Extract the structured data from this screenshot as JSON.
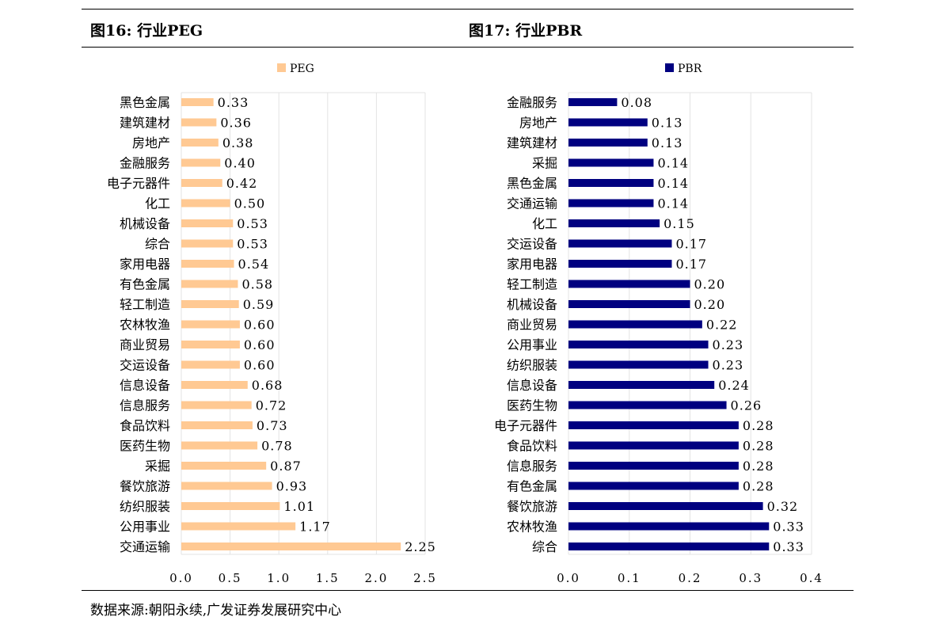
{
  "figures": [
    {
      "heading": "图16:  行业PEG"
    },
    {
      "heading": "图17:  行业PBR"
    }
  ],
  "source": "数据来源:朝阳永续,广发证券发展研究中心",
  "chart_data": [
    {
      "type": "bar",
      "orientation": "horizontal",
      "title": "",
      "color": "#FFC993",
      "categories": [
        "黑色金属",
        "建筑建材",
        "房地产",
        "金融服务",
        "电子元器件",
        "化工",
        "机械设备",
        "综合",
        "家用电器",
        "有色金属",
        "轻工制造",
        "农林牧渔",
        "商业贸易",
        "交运设备",
        "信息设备",
        "信息服务",
        "食品饮料",
        "医药生物",
        "采掘",
        "餐饮旅游",
        "纺织服装",
        "公用事业",
        "交通运输"
      ],
      "series": [
        {
          "name": "PEG",
          "values": [
            0.33,
            0.36,
            0.38,
            0.4,
            0.42,
            0.5,
            0.53,
            0.53,
            0.54,
            0.58,
            0.59,
            0.6,
            0.6,
            0.6,
            0.68,
            0.72,
            0.73,
            0.78,
            0.87,
            0.93,
            1.01,
            1.17,
            2.25
          ]
        }
      ],
      "value_labels": [
        "0.33",
        "0.36",
        "0.38",
        "0.40",
        "0.42",
        "0.50",
        "0.53",
        "0.53",
        "0.54",
        "0.58",
        "0.59",
        "0.60",
        "0.60",
        "0.60",
        "0.68",
        "0.72",
        "0.73",
        "0.78",
        "0.87",
        "0.93",
        "1.01",
        "1.17",
        "2.25"
      ],
      "xlim": [
        0,
        2.5
      ],
      "ticks": [
        "0.0",
        "0.5",
        "1.0",
        "1.5",
        "2.0",
        "2.5"
      ],
      "legend_position": "top-center",
      "grid": true
    },
    {
      "type": "bar",
      "orientation": "horizontal",
      "title": "",
      "color": "#000080",
      "categories": [
        "金融服务",
        "房地产",
        "建筑建材",
        "采掘",
        "黑色金属",
        "交通运输",
        "化工",
        "交运设备",
        "家用电器",
        "轻工制造",
        "机械设备",
        "商业贸易",
        "公用事业",
        "纺织服装",
        "信息设备",
        "医药生物",
        "电子元器件",
        "食品饮料",
        "信息服务",
        "有色金属",
        "餐饮旅游",
        "农林牧渔",
        "综合"
      ],
      "series": [
        {
          "name": "PBR",
          "values": [
            0.08,
            0.13,
            0.13,
            0.14,
            0.14,
            0.14,
            0.15,
            0.17,
            0.17,
            0.2,
            0.2,
            0.22,
            0.23,
            0.23,
            0.24,
            0.26,
            0.28,
            0.28,
            0.28,
            0.28,
            0.32,
            0.33,
            0.33
          ]
        }
      ],
      "value_labels": [
        "0.08",
        "0.13",
        "0.13",
        "0.14",
        "0.14",
        "0.14",
        "0.15",
        "0.17",
        "0.17",
        "0.20",
        "0.20",
        "0.22",
        "0.23",
        "0.23",
        "0.24",
        "0.26",
        "0.28",
        "0.28",
        "0.28",
        "0.28",
        "0.32",
        "0.33",
        "0.33"
      ],
      "xlim": [
        0,
        0.4
      ],
      "ticks": [
        "0.0",
        "0.1",
        "0.2",
        "0.3",
        "0.4"
      ],
      "legend_position": "top-center",
      "grid": true
    }
  ]
}
